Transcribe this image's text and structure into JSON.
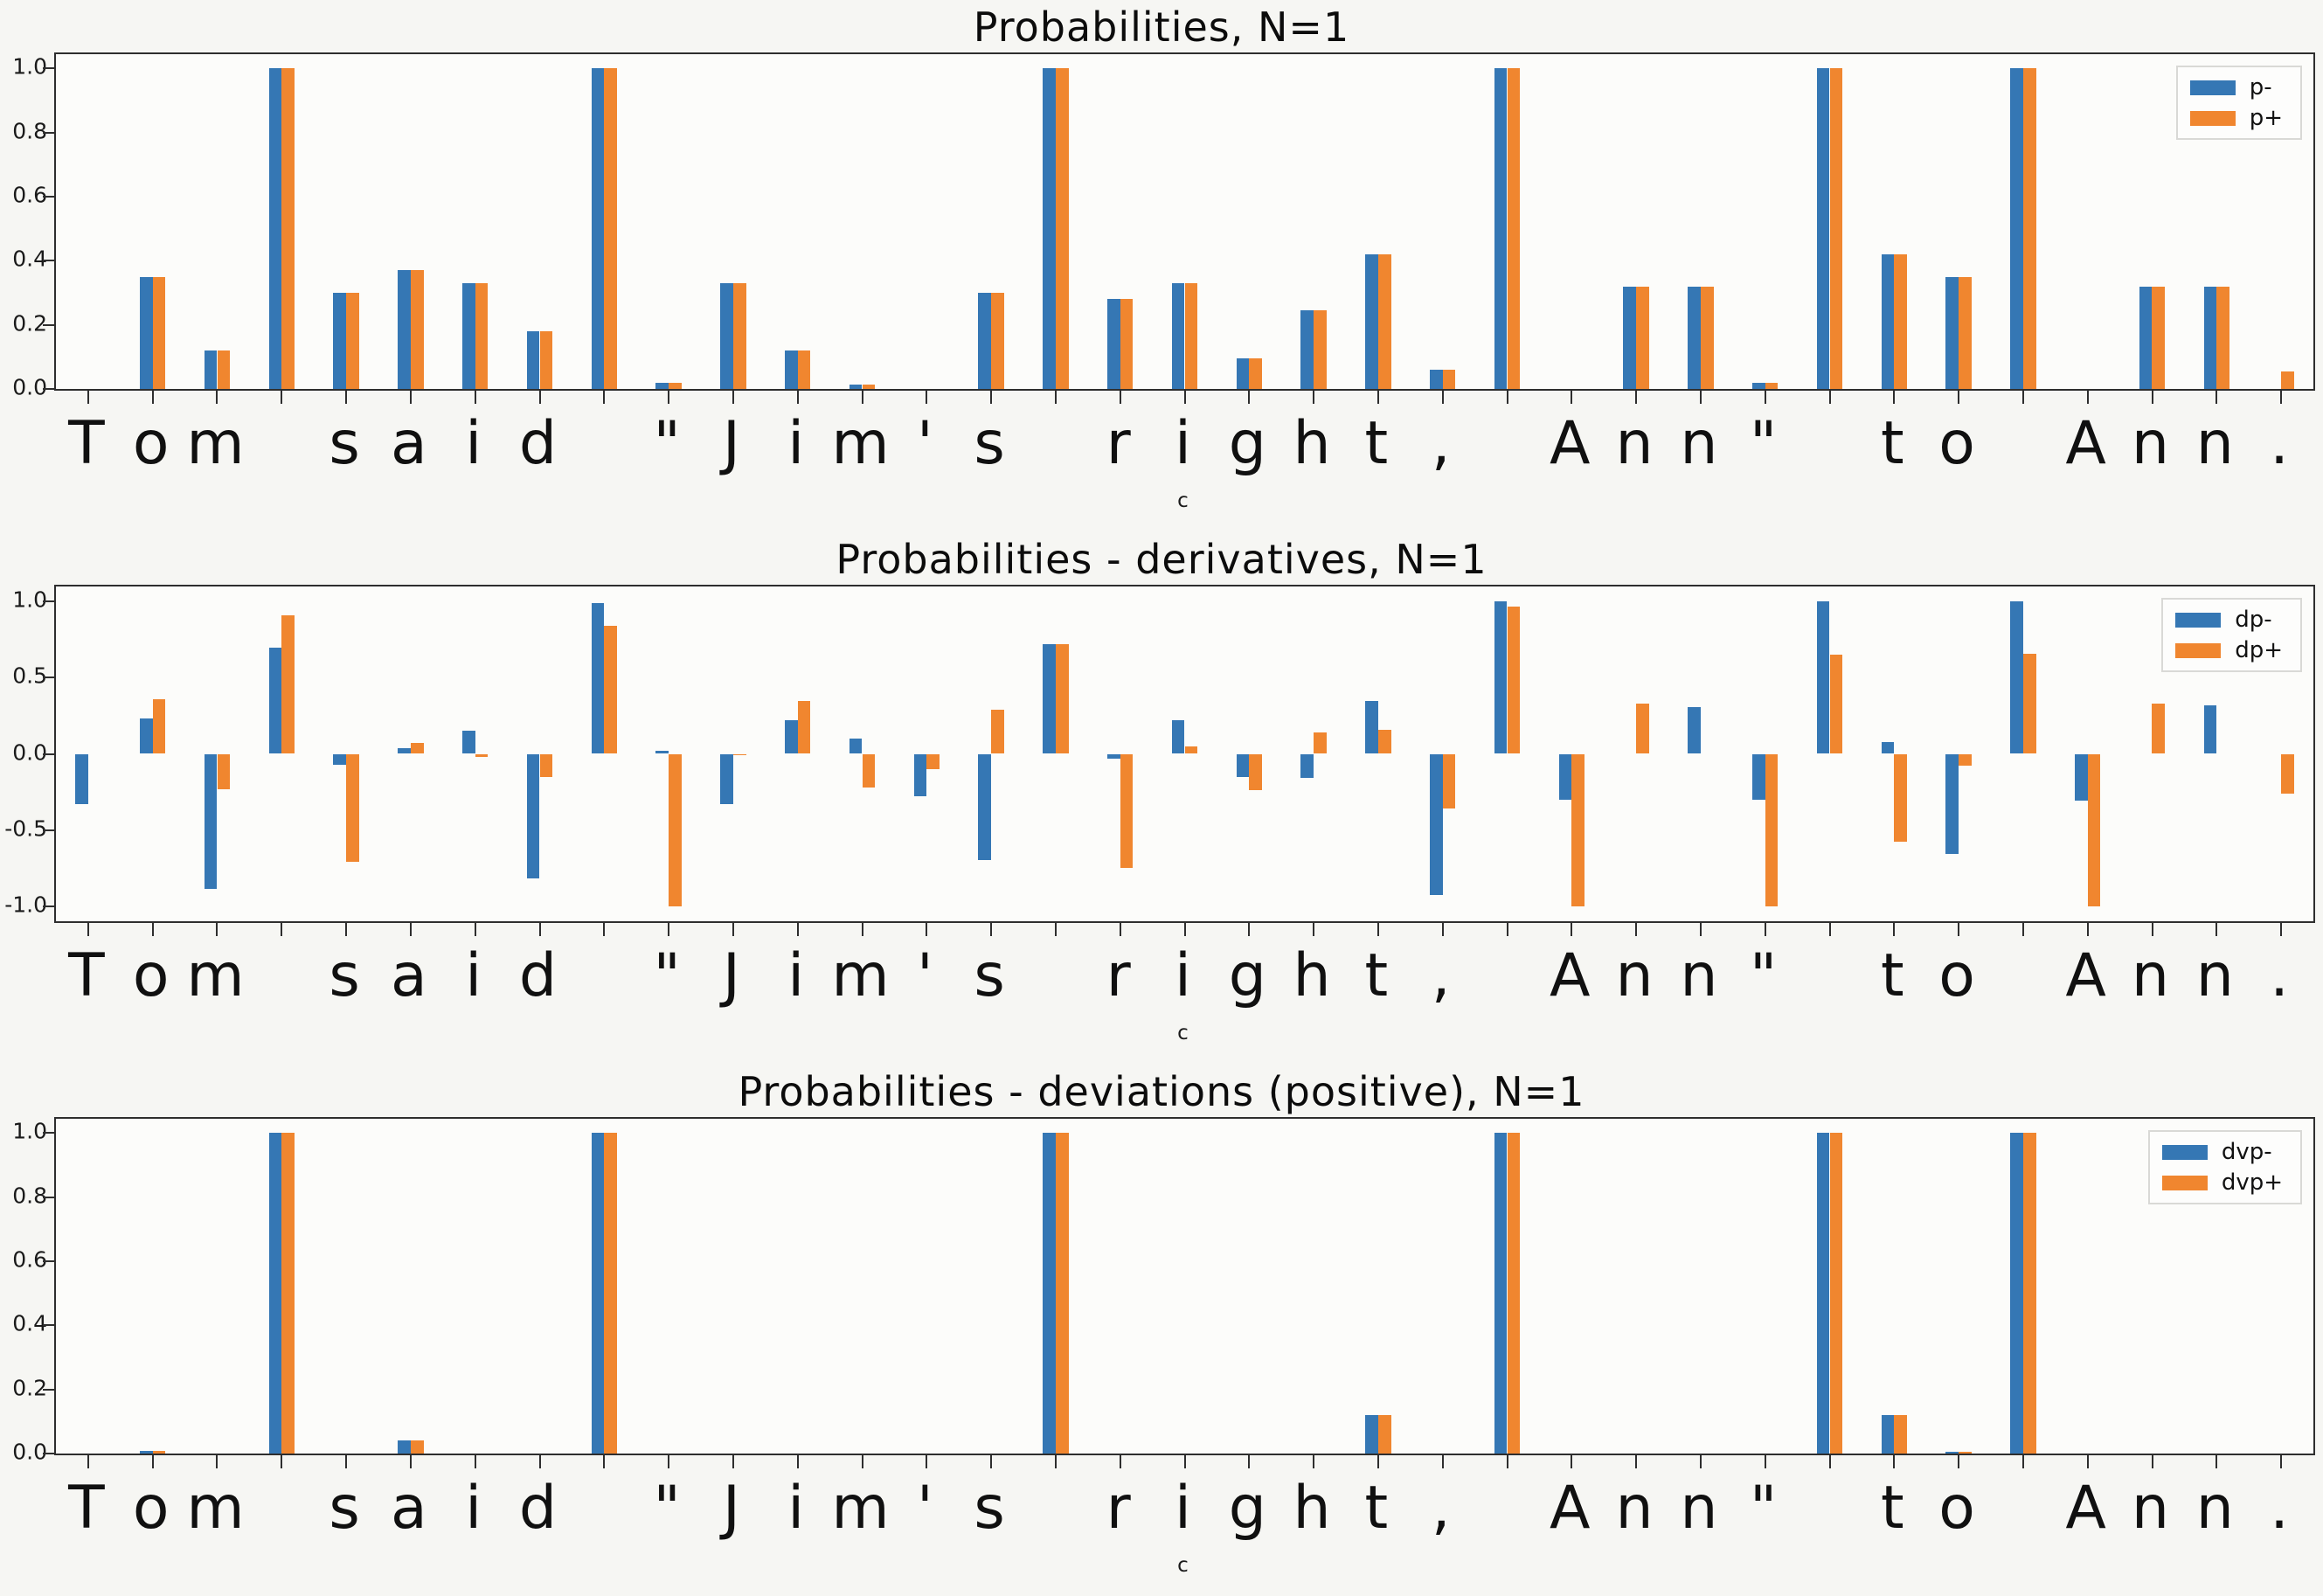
{
  "colors": {
    "blue": "#3577b4",
    "orange": "#f0862f"
  },
  "categories": [
    "T",
    "o",
    "m",
    " ",
    "s",
    "a",
    "i",
    "d",
    " ",
    "\"",
    "J",
    "i",
    "m",
    "'",
    "s",
    " ",
    "r",
    "i",
    "g",
    "h",
    "t",
    ",",
    " ",
    "A",
    "n",
    "n",
    "\"",
    " ",
    "t",
    "o",
    " ",
    "A",
    "n",
    "n",
    "."
  ],
  "chart_data": [
    {
      "type": "bar",
      "title": "Probabilities, N=1",
      "xlabel": "c",
      "ylabel": "",
      "ylim": [
        0,
        1.045
      ],
      "yticks": [
        "0.0",
        "0.2",
        "0.4",
        "0.6",
        "0.8",
        "1.0"
      ],
      "grid": false,
      "legend_position": "upper right",
      "series": [
        {
          "name": "p-",
          "color": "blue",
          "values": [
            0,
            0.35,
            0.12,
            1.0,
            0.3,
            0.37,
            0.33,
            0.18,
            1.0,
            0.02,
            0.33,
            0.12,
            0.015,
            0,
            0.3,
            1.0,
            0.28,
            0.33,
            0.095,
            0.245,
            0.42,
            0.06,
            1.0,
            0,
            0.32,
            0.32,
            0.02,
            1.0,
            0.42,
            0.35,
            1.0,
            0,
            0.32,
            0.32,
            0
          ]
        },
        {
          "name": "p+",
          "color": "orange",
          "values": [
            0,
            0.35,
            0.12,
            1.0,
            0.3,
            0.37,
            0.33,
            0.18,
            1.0,
            0.02,
            0.33,
            0.12,
            0.015,
            0,
            0.3,
            1.0,
            0.28,
            0.33,
            0.095,
            0.245,
            0.42,
            0.06,
            1.0,
            0,
            0.32,
            0.32,
            0.02,
            1.0,
            0.42,
            0.35,
            1.0,
            0,
            0.32,
            0.32,
            0.055
          ]
        }
      ]
    },
    {
      "type": "bar",
      "title": "Probabilities - derivatives, N=1",
      "xlabel": "c",
      "ylabel": "",
      "ylim": [
        -1.1,
        1.1
      ],
      "yticks": [
        "-1.0",
        "-0.5",
        "0.0",
        "0.5",
        "1.0"
      ],
      "grid": false,
      "legend_position": "upper right",
      "series": [
        {
          "name": "dp-",
          "color": "blue",
          "values": [
            -0.33,
            0.23,
            -0.89,
            0.7,
            -0.07,
            0.04,
            0.15,
            -0.82,
            0.99,
            0.02,
            -0.33,
            0.22,
            0.1,
            -0.28,
            -0.7,
            0.72,
            -0.03,
            0.22,
            -0.15,
            -0.16,
            0.35,
            -0.93,
            1.0,
            -0.3,
            0,
            0.31,
            -0.3,
            1.0,
            0.08,
            -0.66,
            1.0,
            -0.31,
            0,
            0.32,
            0
          ]
        },
        {
          "name": "dp+",
          "color": "orange",
          "values": [
            0,
            0.36,
            -0.23,
            0.91,
            -0.71,
            0.07,
            -0.02,
            -0.15,
            0.84,
            -1.0,
            -0.01,
            0.35,
            -0.22,
            -0.1,
            0.29,
            0.72,
            -0.75,
            0.05,
            -0.24,
            0.14,
            0.16,
            -0.36,
            0.97,
            -1.0,
            0.33,
            0,
            -1.0,
            0.65,
            -0.58,
            -0.08,
            0.66,
            -1.0,
            0.33,
            0,
            -0.26
          ]
        }
      ]
    },
    {
      "type": "bar",
      "title": "Probabilities - deviations (positive), N=1",
      "xlabel": "c",
      "ylabel": "",
      "ylim": [
        0,
        1.045
      ],
      "yticks": [
        "0.0",
        "0.2",
        "0.4",
        "0.6",
        "0.8",
        "1.0"
      ],
      "grid": false,
      "legend_position": "upper right",
      "series": [
        {
          "name": "dvp-",
          "color": "blue",
          "values": [
            0,
            0.008,
            0,
            1.0,
            0,
            0.04,
            0,
            0,
            1.0,
            0,
            0,
            0,
            0,
            0,
            0,
            1.0,
            0,
            0,
            0,
            0,
            0.12,
            0,
            1.0,
            0,
            0,
            0,
            0,
            1.0,
            0.12,
            0.005,
            1.0,
            0,
            0,
            0,
            0
          ]
        },
        {
          "name": "dvp+",
          "color": "orange",
          "values": [
            0,
            0.008,
            0,
            1.0,
            0,
            0.04,
            0,
            0,
            1.0,
            0,
            0,
            0,
            0,
            0,
            0,
            1.0,
            0,
            0,
            0,
            0,
            0.12,
            0,
            1.0,
            0,
            0,
            0,
            0,
            1.0,
            0.12,
            0.005,
            1.0,
            0,
            0,
            0,
            0
          ]
        }
      ]
    }
  ]
}
